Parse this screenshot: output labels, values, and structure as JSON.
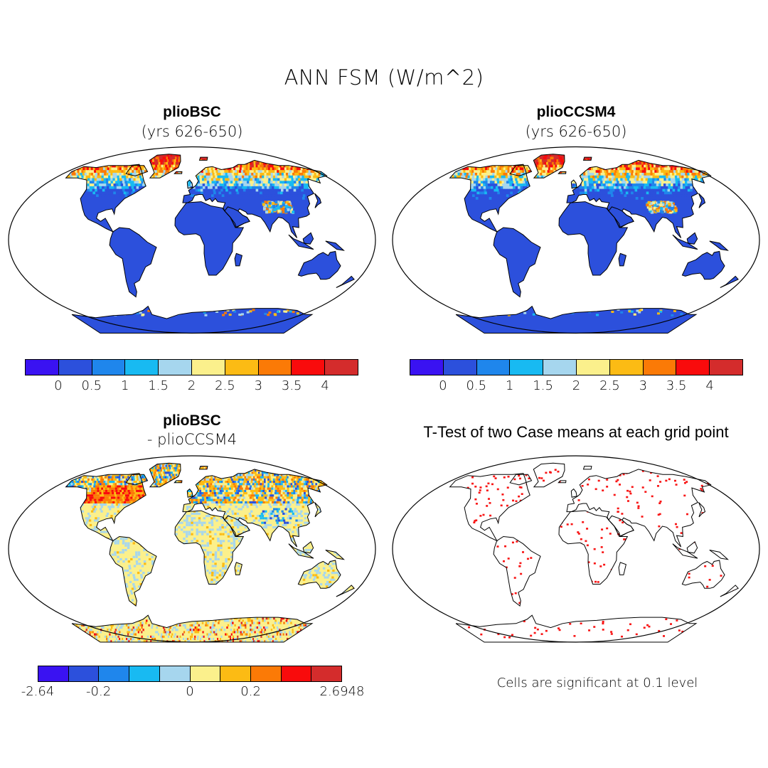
{
  "title": "ANN FSM (W/m^2)",
  "palette": [
    "#3a12f2",
    "#2c50dc",
    "#1f86ec",
    "#18baf2",
    "#a6d6ee",
    "#fbf08c",
    "#fcbb14",
    "#fb7a06",
    "#f90b0c",
    "#d42c2c"
  ],
  "land_color": "#2c50dc",
  "significance_color": "#f81414",
  "panels": {
    "tl": {
      "title": "plioBSC",
      "subtitle": "(yrs 626-650)"
    },
    "tr": {
      "title": "plioCCSM4",
      "subtitle": "(yrs 626-650)"
    },
    "bl": {
      "title": "plioBSC",
      "subtitle": "- plioCCSM4"
    },
    "br": {
      "title": "T-Test of two Case means at each grid point",
      "note": "Cells are significant at 0.1 level"
    }
  },
  "colorbar_abs": {
    "ticks": [
      "0",
      "0.5",
      "1",
      "1.5",
      "2",
      "2.5",
      "3",
      "3.5",
      "4"
    ]
  },
  "colorbar_diff": {
    "ticks": [
      "-2.64",
      "-0.2",
      "0",
      "0.2",
      "2.6948"
    ]
  },
  "chart_data": [
    {
      "type": "heatmap",
      "title": "plioBSC",
      "subtitle": "(yrs 626-650)",
      "variable": "ANN FSM (W/m^2)",
      "colorbar_levels": [
        0,
        0.5,
        1,
        1.5,
        2,
        2.5,
        3,
        3.5,
        4
      ],
      "projection": "Robinson"
    },
    {
      "type": "heatmap",
      "title": "plioCCSM4",
      "subtitle": "(yrs 626-650)",
      "variable": "ANN FSM (W/m^2)",
      "colorbar_levels": [
        0,
        0.5,
        1,
        1.5,
        2,
        2.5,
        3,
        3.5,
        4
      ],
      "projection": "Robinson"
    },
    {
      "type": "heatmap",
      "title": "plioBSC",
      "subtitle": "- plioCCSM4",
      "variable": "ANN FSM (W/m^2)",
      "colorbar_labels": [
        "-2.64",
        "-0.2",
        "0",
        "0.2",
        "2.6948"
      ],
      "projection": "Robinson"
    },
    {
      "type": "heatmap",
      "title": "T-Test of two Case means at each grid point",
      "note": "Cells are significant at 0.1 level",
      "projection": "Robinson"
    }
  ]
}
